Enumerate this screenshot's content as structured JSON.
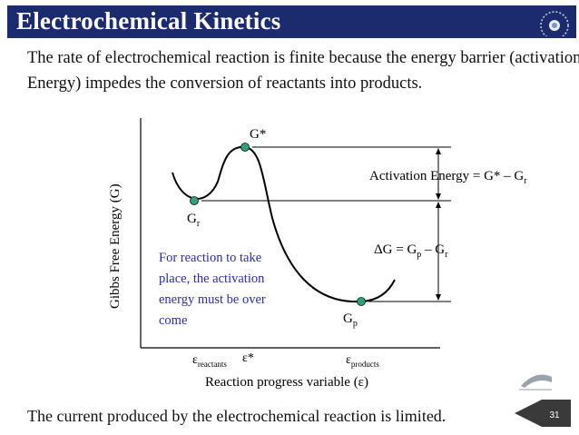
{
  "header": {
    "title": "Electrochemical Kinetics"
  },
  "intro": {
    "line1": "The rate of electrochemical reaction is finite because the energy barrier (activation",
    "line2": "Energy) impedes the conversion of reactants into products."
  },
  "diagram": {
    "y_axis_label": "Gibbs Free Energy (G)",
    "x_axis_label": "Reaction progress variable (ε)",
    "peak_label": "G*",
    "reactant_label_main": "G",
    "reactant_label_sub": "r",
    "product_label_main": "G",
    "product_label_sub": "p",
    "x_tick_reactants_main": "ε",
    "x_tick_reactants_sub": "reactants",
    "x_tick_star": "ε*",
    "x_tick_products_main": "ε",
    "x_tick_products_sub": "products",
    "activation_energy_text": "Activation Energy = G* – G",
    "activation_energy_sub": "r",
    "delta_g_text_a": "ΔG = G",
    "delta_g_sub_p": "p",
    "delta_g_text_b": " – G",
    "delta_g_sub_r": "r",
    "note_line1": "For reaction to take",
    "note_line2": "place, the activation",
    "note_line3": "energy must be over",
    "note_line4": "come",
    "colors": {
      "note": "#2b2bb0",
      "point": "#2aa37a",
      "curve": "#000000"
    }
  },
  "footer": {
    "text": "The current produced by the electrochemical reaction is limited.",
    "slide_number": "31"
  },
  "icons": [
    "university-logo-icon",
    "navigation-back-icon"
  ]
}
